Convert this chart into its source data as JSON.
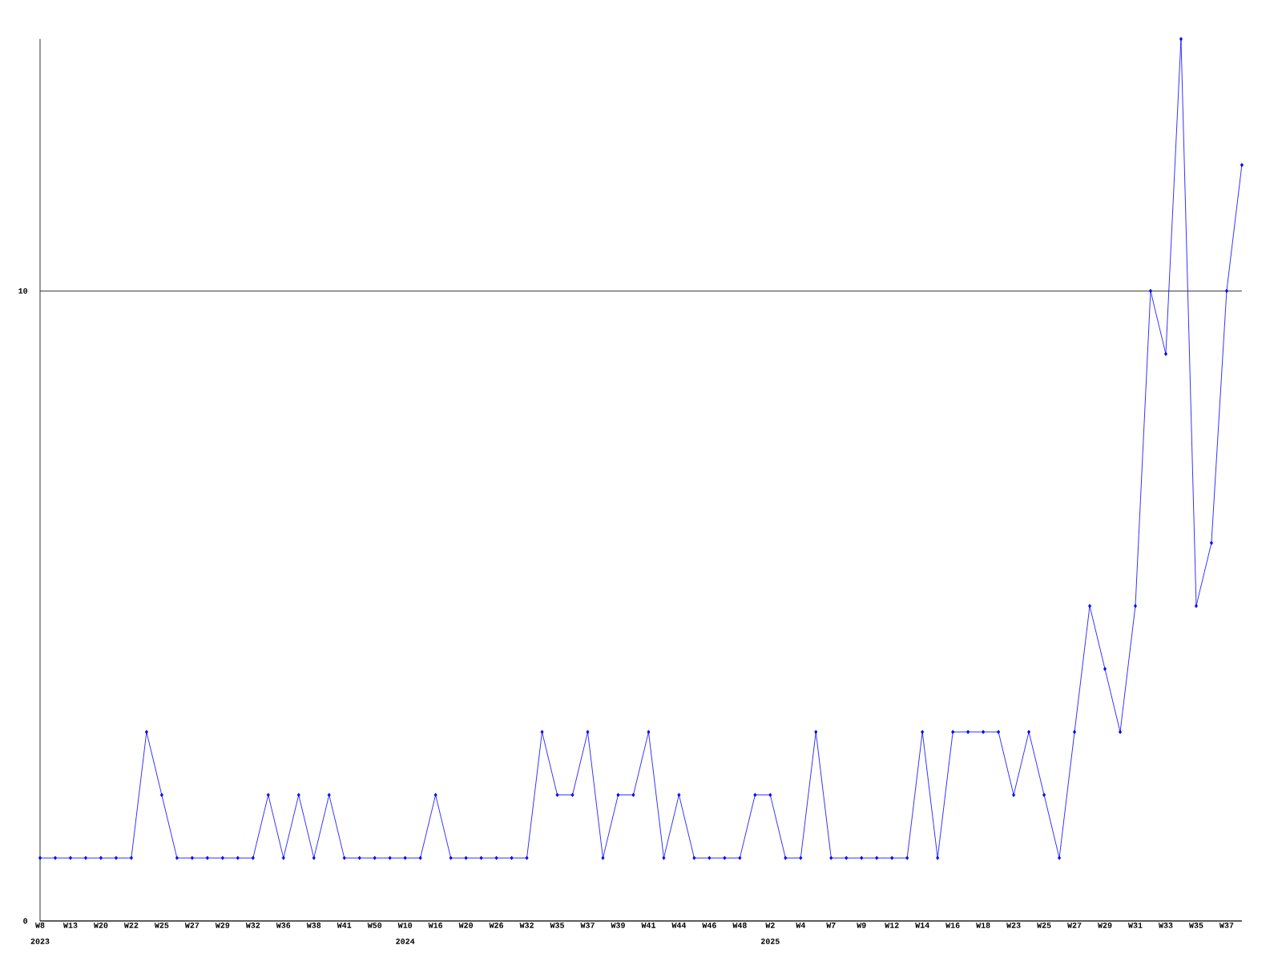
{
  "chart_data": {
    "type": "line",
    "categories": [
      "W8",
      null,
      "W13",
      null,
      "W20",
      null,
      "W22",
      null,
      "W25",
      null,
      "W27",
      null,
      "W29",
      null,
      "W32",
      null,
      "W36",
      null,
      "W38",
      null,
      "W41",
      null,
      "W50",
      null,
      "W10",
      null,
      "W16",
      null,
      "W20",
      null,
      "W26",
      null,
      "W32",
      null,
      "W35",
      null,
      "W37",
      null,
      "W39",
      null,
      "W41",
      null,
      "W44",
      null,
      "W46",
      null,
      "W48",
      null,
      "W2",
      null,
      "W4",
      null,
      "W7",
      null,
      "W9",
      null,
      "W12",
      null,
      "W14",
      null,
      "W16",
      null,
      "W18",
      null,
      "W23",
      null,
      "W25",
      null,
      "W27",
      null,
      "W29",
      null,
      "W31",
      null,
      "W33",
      null,
      "W35",
      null,
      "W37",
      null
    ],
    "series": [
      {
        "color": "#0000ff",
        "values": [
          1,
          1,
          1,
          1,
          1,
          1,
          1,
          3,
          2,
          1,
          1,
          1,
          1,
          1,
          1,
          2,
          1,
          2,
          1,
          2,
          1,
          1,
          1,
          1,
          1,
          1,
          2,
          1,
          1,
          1,
          1,
          1,
          1,
          3,
          2,
          2,
          3,
          1,
          2,
          2,
          3,
          1,
          2,
          1,
          1,
          1,
          1,
          2,
          2,
          1,
          1,
          3,
          1,
          1,
          1,
          1,
          1,
          1,
          3,
          1,
          3,
          3,
          3,
          3,
          2,
          3,
          2,
          1,
          3,
          5,
          4,
          3,
          5,
          10,
          9,
          14,
          5,
          6,
          10,
          12
        ]
      }
    ],
    "ylim": [
      0,
      14
    ],
    "yticks": [
      0,
      10
    ],
    "grid": "y",
    "marker": "diamond",
    "line_style": "solid",
    "annotations": [
      "2023",
      "2024",
      "2025"
    ]
  }
}
